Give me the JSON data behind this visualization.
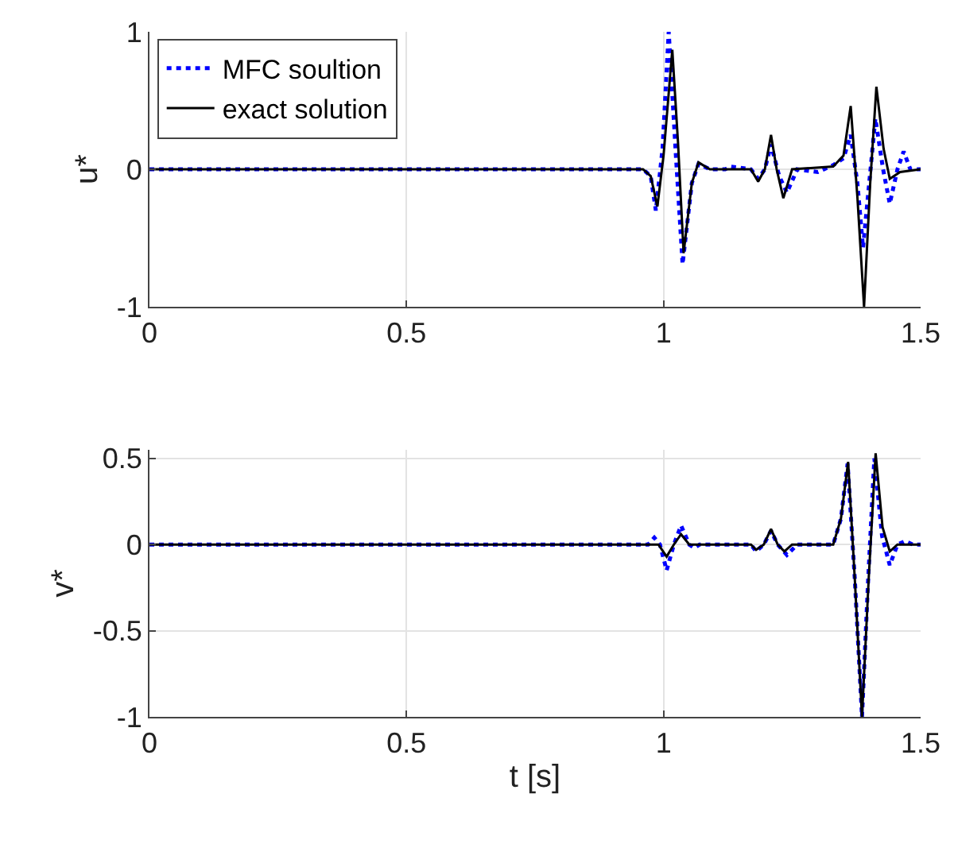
{
  "chart_data": [
    {
      "type": "line",
      "ylabel": "u*",
      "xlim": [
        0,
        1.5
      ],
      "ylim": [
        -1,
        1
      ],
      "xticks": [
        0,
        0.5,
        1,
        1.5
      ],
      "yticks": [
        -1,
        0,
        1
      ],
      "grid": true,
      "legend": "top left",
      "series": [
        {
          "name": "MFC soultion",
          "color": "#0000ff",
          "line_style": "dotted",
          "x": [
            0,
            0.96,
            0.975,
            0.985,
            0.998,
            1.01,
            1.024,
            1.037,
            1.055,
            1.068,
            1.09,
            1.12,
            1.13,
            1.17,
            1.184,
            1.197,
            1.209,
            1.225,
            1.24,
            1.26,
            1.3,
            1.33,
            1.35,
            1.364,
            1.377,
            1.388,
            1.4,
            1.412,
            1.427,
            1.44,
            1.455,
            1.467,
            1.48,
            1.5
          ],
          "values": [
            0,
            0,
            -0.05,
            -0.3,
            0.15,
            1.0,
            0.1,
            -0.69,
            -0.1,
            0.04,
            0,
            0,
            0.02,
            0,
            -0.07,
            0,
            0.18,
            -0.05,
            -0.17,
            0,
            -0.02,
            0.03,
            0.08,
            0.25,
            -0.1,
            -0.57,
            -0.1,
            0.37,
            0,
            -0.25,
            0,
            0.13,
            0,
            0
          ]
        },
        {
          "name": "exact solution",
          "color": "#000000",
          "line_style": "solid",
          "x": [
            0,
            0.96,
            0.975,
            0.988,
            1.0,
            1.017,
            1.028,
            1.039,
            1.055,
            1.068,
            1.09,
            1.17,
            1.184,
            1.197,
            1.209,
            1.22,
            1.233,
            1.25,
            1.33,
            1.35,
            1.364,
            1.377,
            1.39,
            1.402,
            1.414,
            1.428,
            1.44,
            1.46,
            1.5
          ],
          "values": [
            0,
            0,
            -0.05,
            -0.27,
            0.1,
            0.87,
            0.2,
            -0.61,
            -0.1,
            0.05,
            0,
            0,
            -0.09,
            0,
            0.25,
            0,
            -0.21,
            0,
            0.02,
            0.1,
            0.46,
            -0.2,
            -1,
            -0.1,
            0.6,
            0.15,
            -0.07,
            -0.02,
            0
          ]
        }
      ]
    },
    {
      "type": "line",
      "xlabel": "t [s]",
      "ylabel": "v*",
      "xlim": [
        0,
        1.5
      ],
      "ylim": [
        -1,
        0.55
      ],
      "xticks": [
        0,
        0.5,
        1,
        1.5
      ],
      "yticks": [
        -1,
        -0.5,
        0,
        0.5
      ],
      "grid": true,
      "series": [
        {
          "color": "#0000ff",
          "line_style": "dotted",
          "x": [
            0,
            0.97,
            0.982,
            0.993,
            1.006,
            1.02,
            1.034,
            1.05,
            1.06,
            1.07,
            1.17,
            1.18,
            1.195,
            1.209,
            1.222,
            1.24,
            1.26,
            1.33,
            1.345,
            1.358,
            1.372,
            1.386,
            1.398,
            1.41,
            1.425,
            1.44,
            1.455,
            1.47,
            1.485,
            1.5
          ],
          "values": [
            0,
            0,
            0.04,
            0,
            -0.15,
            0,
            0.11,
            0,
            -0.02,
            0,
            0,
            -0.04,
            0,
            0.08,
            0,
            -0.06,
            0,
            0,
            0.15,
            0.47,
            -0.2,
            -1,
            -0.2,
            0.5,
            0.05,
            -0.12,
            0,
            0.02,
            0,
            0
          ]
        },
        {
          "color": "#000000",
          "line_style": "solid",
          "x": [
            0,
            0.99,
            1.006,
            1.02,
            1.034,
            1.05,
            1.17,
            1.18,
            1.195,
            1.209,
            1.222,
            1.235,
            1.25,
            1.33,
            1.345,
            1.359,
            1.372,
            1.386,
            1.399,
            1.4125,
            1.426,
            1.44,
            1.455,
            1.5
          ],
          "values": [
            0,
            0,
            -0.07,
            0,
            0.06,
            0,
            0,
            -0.03,
            0,
            0.09,
            0,
            -0.04,
            0,
            0,
            0.15,
            0.48,
            -0.2,
            -1,
            -0.2,
            0.53,
            0.1,
            -0.04,
            0,
            0
          ]
        }
      ]
    }
  ]
}
